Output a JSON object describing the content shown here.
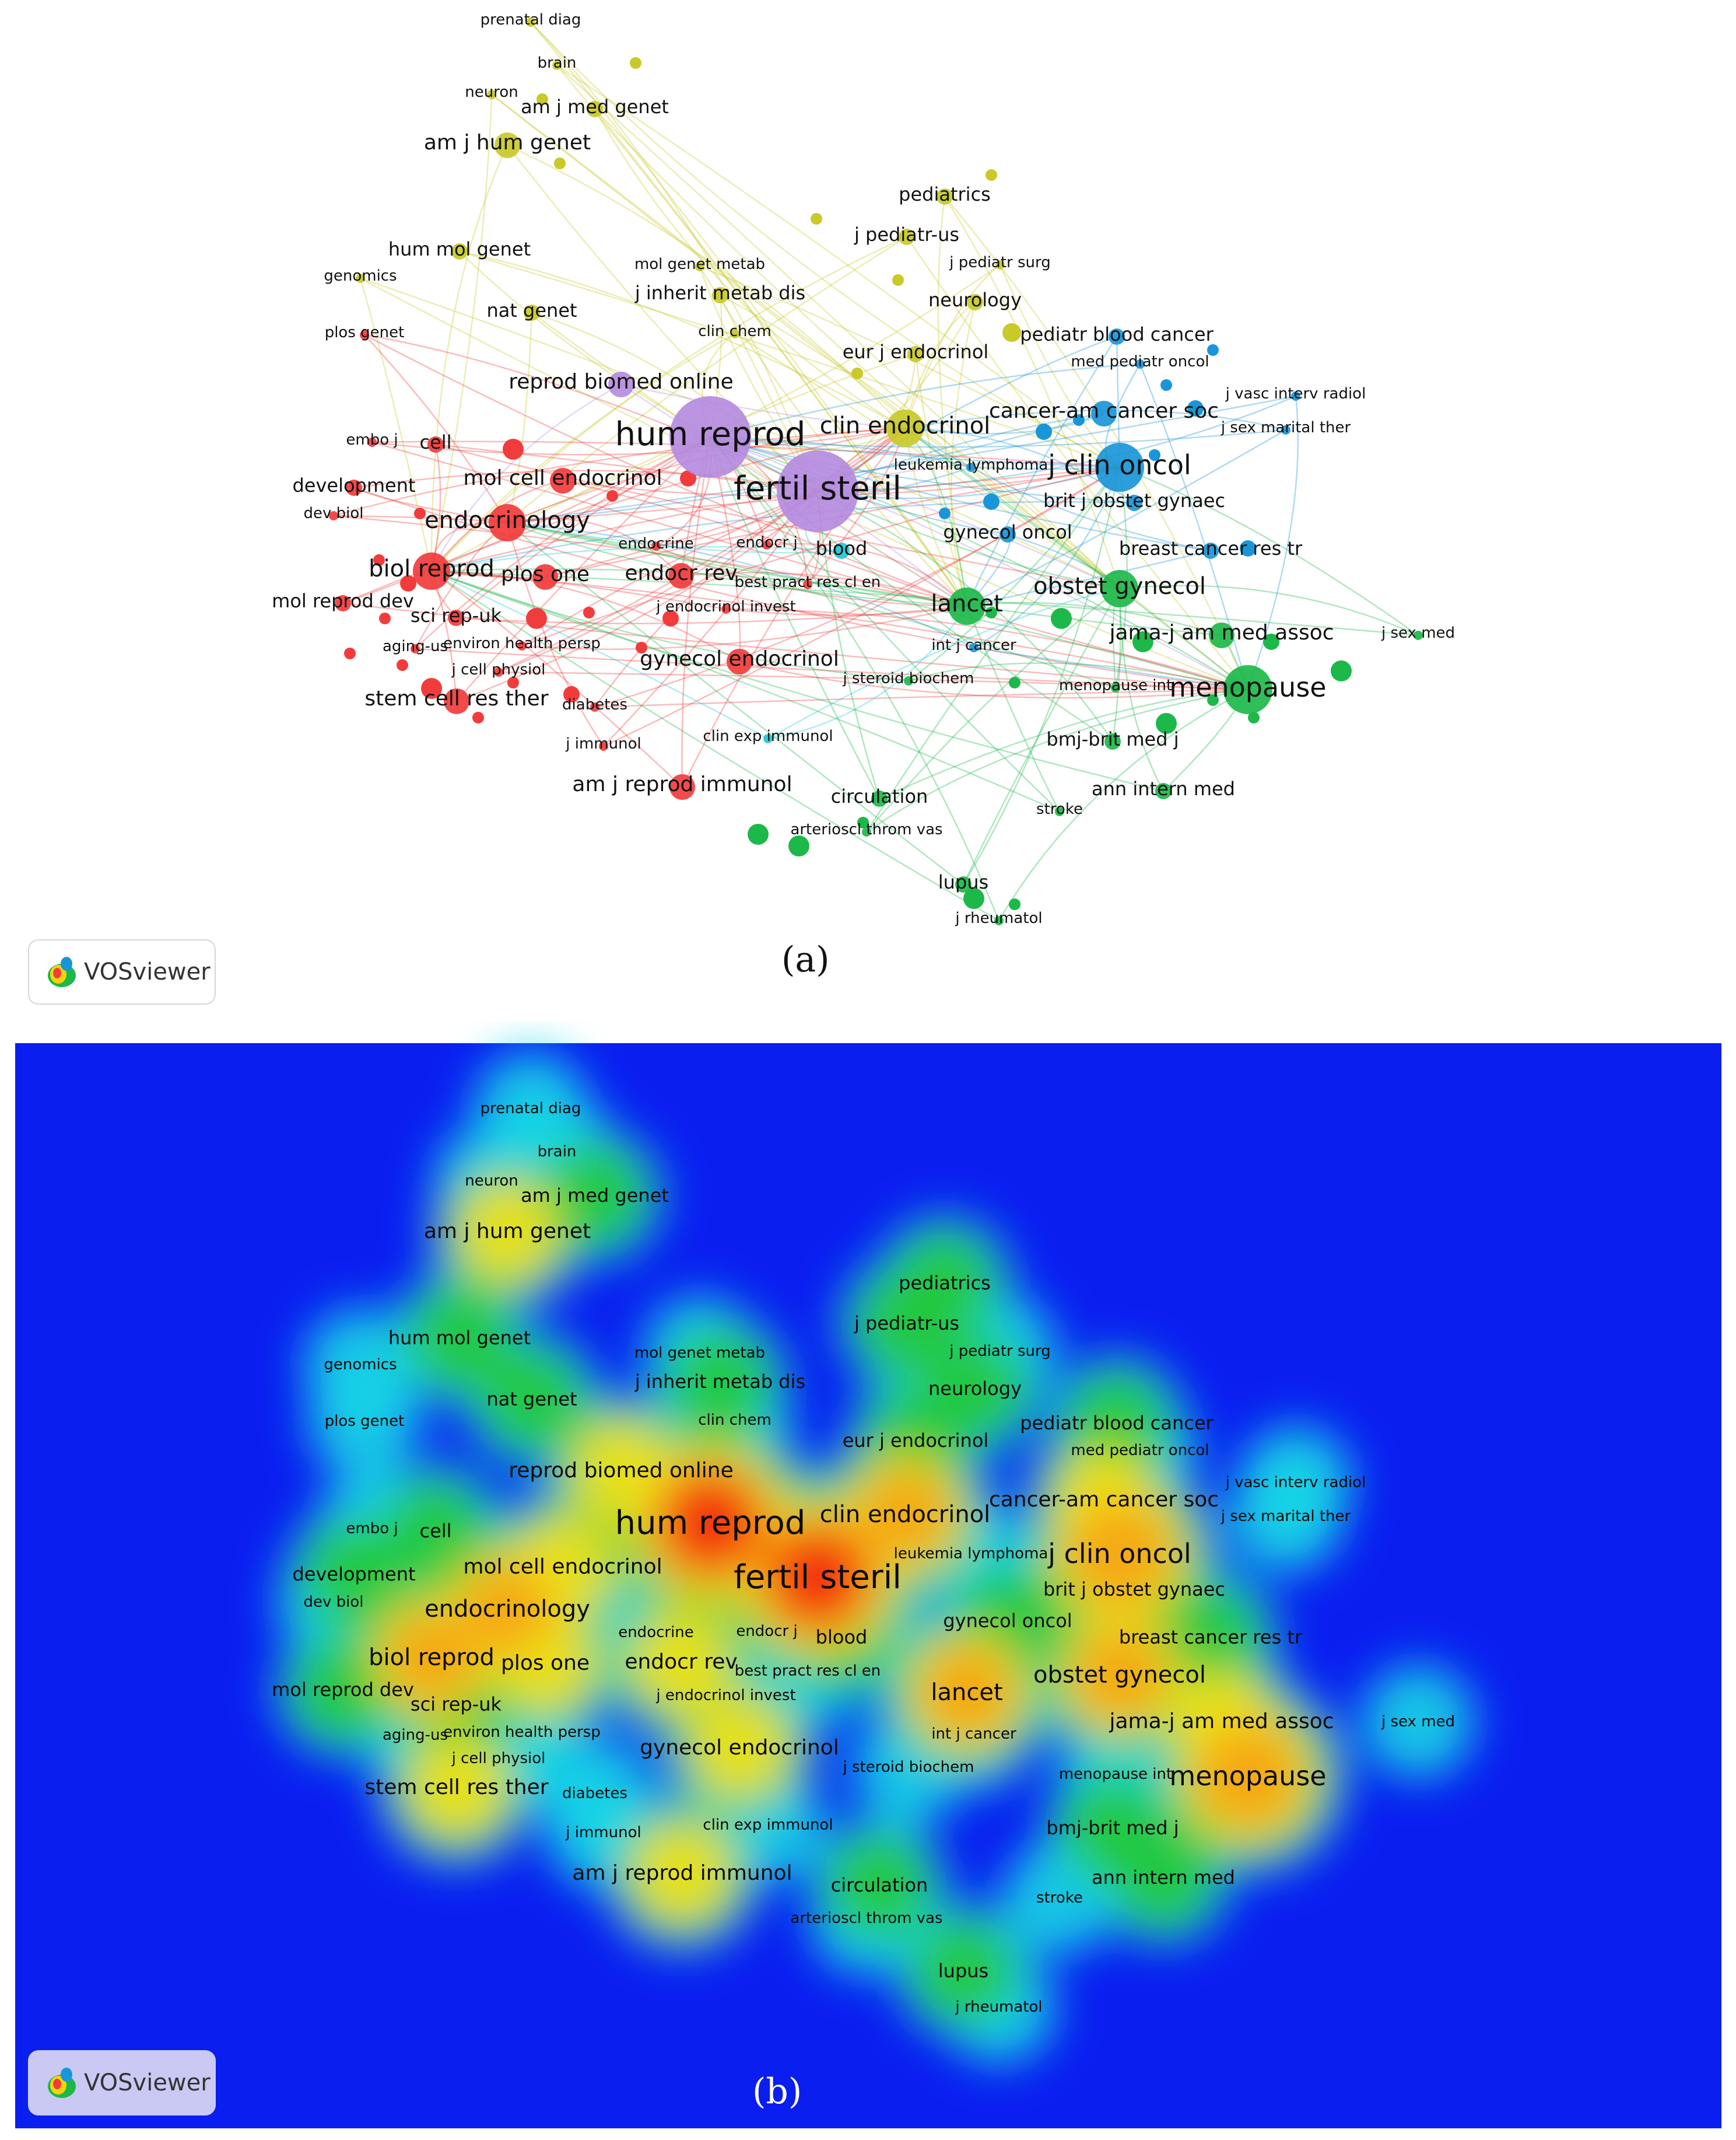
{
  "panels": {
    "a": {
      "caption": "(a)",
      "badge": "VOSviewer"
    },
    "b": {
      "caption": "(b)",
      "badge": "VOSviewer"
    }
  },
  "cluster_colors": {
    "red": "#f23c3c",
    "green": "#1db84a",
    "blue": "#1a96d8",
    "yellow": "#c9c92a",
    "purple": "#b58be0",
    "cyan": "#1fc9d6",
    "heat_background": "#0a1ef0"
  },
  "nodes": [
    {
      "label": "prenatal diag",
      "cluster": "yellow",
      "size": 1
    },
    {
      "label": "brain",
      "cluster": "yellow",
      "size": 1
    },
    {
      "label": "neuron",
      "cluster": "yellow",
      "size": 1
    },
    {
      "label": "am j med genet",
      "cluster": "yellow",
      "size": 2
    },
    {
      "label": "am j hum genet",
      "cluster": "yellow",
      "size": 3
    },
    {
      "label": "pediatrics",
      "cluster": "yellow",
      "size": 2
    },
    {
      "label": "j pediatr-us",
      "cluster": "yellow",
      "size": 2
    },
    {
      "label": "j pediatr surg",
      "cluster": "yellow",
      "size": 1
    },
    {
      "label": "hum mol genet",
      "cluster": "yellow",
      "size": 2
    },
    {
      "label": "mol genet metab",
      "cluster": "yellow",
      "size": 1
    },
    {
      "label": "genomics",
      "cluster": "yellow",
      "size": 1
    },
    {
      "label": "j inherit metab dis",
      "cluster": "yellow",
      "size": 2
    },
    {
      "label": "neurology",
      "cluster": "yellow",
      "size": 2
    },
    {
      "label": "plos genet",
      "cluster": "red",
      "size": 1
    },
    {
      "label": "nat genet",
      "cluster": "yellow",
      "size": 2
    },
    {
      "label": "clin chem",
      "cluster": "yellow",
      "size": 1
    },
    {
      "label": "pediatr blood cancer",
      "cluster": "blue",
      "size": 2
    },
    {
      "label": "eur j endocrinol",
      "cluster": "yellow",
      "size": 2
    },
    {
      "label": "med pediatr oncol",
      "cluster": "blue",
      "size": 1
    },
    {
      "label": "reprod biomed online",
      "cluster": "purple",
      "size": 3
    },
    {
      "label": "j vasc interv radiol",
      "cluster": "blue",
      "size": 1
    },
    {
      "label": "cancer-am cancer soc",
      "cluster": "blue",
      "size": 3
    },
    {
      "label": "hum reprod",
      "cluster": "purple",
      "size": 6
    },
    {
      "label": "clin endocrinol",
      "cluster": "yellow",
      "size": 4
    },
    {
      "label": "j sex marital ther",
      "cluster": "blue",
      "size": 1
    },
    {
      "label": "embo j",
      "cluster": "red",
      "size": 1
    },
    {
      "label": "cell",
      "cluster": "red",
      "size": 2
    },
    {
      "label": "j clin oncol",
      "cluster": "blue",
      "size": 5
    },
    {
      "label": "leukemia lymphoma",
      "cluster": "blue",
      "size": 1
    },
    {
      "label": "development",
      "cluster": "red",
      "size": 2
    },
    {
      "label": "mol cell endocrinol",
      "cluster": "red",
      "size": 3
    },
    {
      "label": "fertil steril",
      "cluster": "purple",
      "size": 6
    },
    {
      "label": "brit j obstet gynaec",
      "cluster": "blue",
      "size": 2
    },
    {
      "label": "dev biol",
      "cluster": "red",
      "size": 1
    },
    {
      "label": "endocrinology",
      "cluster": "red",
      "size": 4
    },
    {
      "label": "gynecol oncol",
      "cluster": "blue",
      "size": 2
    },
    {
      "label": "endocrine",
      "cluster": "red",
      "size": 1
    },
    {
      "label": "endocr j",
      "cluster": "red",
      "size": 1
    },
    {
      "label": "blood",
      "cluster": "cyan",
      "size": 2
    },
    {
      "label": "breast cancer res tr",
      "cluster": "blue",
      "size": 2
    },
    {
      "label": "biol reprod",
      "cluster": "red",
      "size": 4
    },
    {
      "label": "plos one",
      "cluster": "red",
      "size": 3
    },
    {
      "label": "endocr rev",
      "cluster": "red",
      "size": 3
    },
    {
      "label": "best pract res cl en",
      "cluster": "red",
      "size": 1
    },
    {
      "label": "obstet gynecol",
      "cluster": "green",
      "size": 4
    },
    {
      "label": "mol reprod dev",
      "cluster": "red",
      "size": 2
    },
    {
      "label": "j endocrinol invest",
      "cluster": "red",
      "size": 1
    },
    {
      "label": "lancet",
      "cluster": "green",
      "size": 4
    },
    {
      "label": "sci rep-uk",
      "cluster": "red",
      "size": 2
    },
    {
      "label": "int j cancer",
      "cluster": "blue",
      "size": 1
    },
    {
      "label": "jama-j am med assoc",
      "cluster": "green",
      "size": 3
    },
    {
      "label": "j sex med",
      "cluster": "green",
      "size": 1
    },
    {
      "label": "aging-us",
      "cluster": "red",
      "size": 1
    },
    {
      "label": "environ health persp",
      "cluster": "red",
      "size": 1
    },
    {
      "label": "gynecol endocrinol",
      "cluster": "red",
      "size": 3
    },
    {
      "label": "j cell physiol",
      "cluster": "red",
      "size": 1
    },
    {
      "label": "j steroid biochem",
      "cluster": "green",
      "size": 1
    },
    {
      "label": "menopause int",
      "cluster": "green",
      "size": 1
    },
    {
      "label": "menopause",
      "cluster": "green",
      "size": 5
    },
    {
      "label": "stem cell res ther",
      "cluster": "red",
      "size": 3
    },
    {
      "label": "diabetes",
      "cluster": "red",
      "size": 1
    },
    {
      "label": "bmj-brit med j",
      "cluster": "green",
      "size": 2
    },
    {
      "label": "j immunol",
      "cluster": "red",
      "size": 1
    },
    {
      "label": "clin exp immunol",
      "cluster": "cyan",
      "size": 1
    },
    {
      "label": "am j reprod immunol",
      "cluster": "red",
      "size": 3
    },
    {
      "label": "ann intern med",
      "cluster": "green",
      "size": 2
    },
    {
      "label": "circulation",
      "cluster": "green",
      "size": 2
    },
    {
      "label": "stroke",
      "cluster": "green",
      "size": 1
    },
    {
      "label": "arterioscl throm vas",
      "cluster": "green",
      "size": 1
    },
    {
      "label": "lupus",
      "cluster": "green",
      "size": 2
    },
    {
      "label": "j rheumatol",
      "cluster": "green",
      "size": 1
    }
  ]
}
